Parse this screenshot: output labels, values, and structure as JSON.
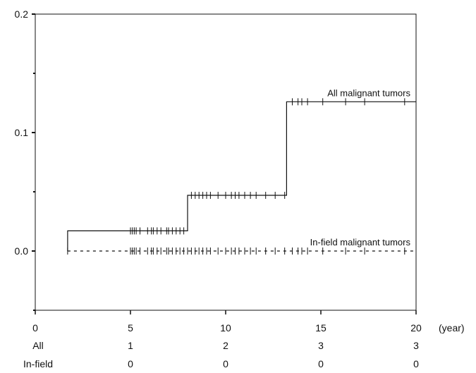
{
  "chart_data": {
    "type": "line",
    "title": "",
    "xlabel": "",
    "ylabel": "",
    "x_unit": "(year)",
    "xlim": [
      0,
      20
    ],
    "ylim": [
      -0.05,
      0.2
    ],
    "x_ticks": [
      0,
      5,
      10,
      15,
      20
    ],
    "x_tick_labels": [
      "0",
      "5",
      "10",
      "15",
      "20"
    ],
    "y_ticks": [
      0.0,
      0.1,
      0.2
    ],
    "y_tick_labels": [
      "0.0",
      "0.1",
      "0.2"
    ],
    "y_minor_ticks": [
      -0.05,
      0.05,
      0.15
    ],
    "grid": false,
    "legend": "none",
    "series": [
      {
        "name": "All malignant tumors",
        "style": "solid",
        "steps": [
          [
            1.7,
            0.0
          ],
          [
            1.7,
            0.017
          ],
          [
            8.0,
            0.017
          ],
          [
            8.0,
            0.047
          ],
          [
            13.2,
            0.047
          ],
          [
            13.2,
            0.126
          ],
          [
            20.0,
            0.126
          ]
        ],
        "censor_x": [
          5.0,
          5.1,
          5.2,
          5.3,
          5.5,
          5.9,
          6.1,
          6.2,
          6.4,
          6.6,
          6.9,
          7.0,
          7.2,
          7.4,
          7.6,
          7.8,
          8.2,
          8.4,
          8.6,
          8.8,
          9.0,
          9.2,
          9.6,
          10.0,
          10.3,
          10.5,
          10.7,
          11.0,
          11.3,
          11.6,
          12.1,
          12.6,
          13.1,
          13.5,
          13.8,
          14.0,
          14.3,
          15.1,
          16.3,
          17.3,
          19.4
        ]
      },
      {
        "name": "In-field malignant tumors",
        "style": "dashed",
        "steps": [
          [
            1.7,
            0.0
          ],
          [
            20.0,
            0.0
          ]
        ],
        "censor_x": [
          1.7,
          5.0,
          5.1,
          5.2,
          5.3,
          5.5,
          5.9,
          6.1,
          6.2,
          6.4,
          6.6,
          6.9,
          7.0,
          7.2,
          7.4,
          7.6,
          7.8,
          8.0,
          8.2,
          8.4,
          8.6,
          8.8,
          9.0,
          9.2,
          9.6,
          10.0,
          10.3,
          10.5,
          10.7,
          11.0,
          11.3,
          11.6,
          12.1,
          12.6,
          13.1,
          13.5,
          13.8,
          14.0,
          14.3,
          15.1,
          16.3,
          17.3,
          19.4
        ]
      }
    ],
    "risk_table": {
      "rows": [
        {
          "label": "All",
          "values": [
            "1",
            "2",
            "3",
            "3"
          ]
        },
        {
          "label": "In-field",
          "values": [
            "0",
            "0",
            "0",
            "0"
          ]
        }
      ],
      "at_x": [
        5,
        10,
        15,
        20
      ]
    }
  },
  "colors": {
    "line": "#111111",
    "axis": "#111111",
    "background": "#ffffff"
  }
}
